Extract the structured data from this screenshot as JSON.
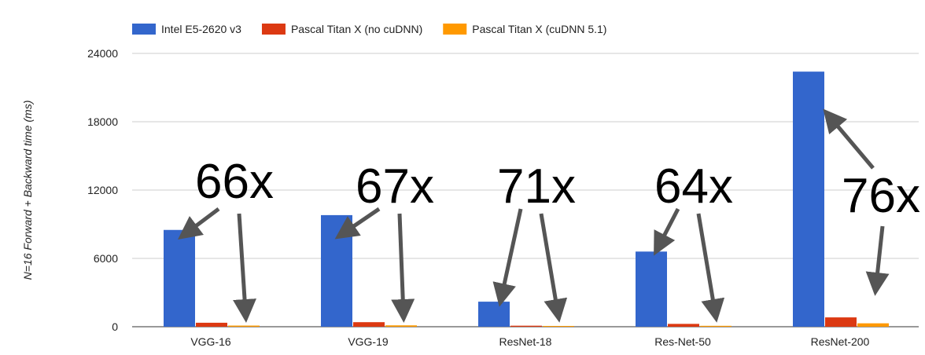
{
  "chart_data": {
    "type": "bar",
    "title": "",
    "xlabel": "",
    "ylabel": "N=16 Forward + Backward time (ms)",
    "ylim": [
      0,
      24000
    ],
    "yticks": [
      0,
      6000,
      12000,
      18000,
      24000
    ],
    "grid": true,
    "legend_position": "top",
    "categories": [
      "VGG-16",
      "VGG-19",
      "ResNet-18",
      "Res-Net-50",
      "ResNet-200"
    ],
    "series": [
      {
        "name": "Intel E5-2620 v3",
        "color": "#3366cc",
        "values": [
          8500,
          9800,
          2200,
          6600,
          22400
        ]
      },
      {
        "name": "Pascal Titan X (no cuDNN)",
        "color": "#dc3912",
        "values": [
          350,
          400,
          90,
          250,
          820
        ]
      },
      {
        "name": "Pascal Titan X (cuDNN 5.1)",
        "color": "#ff9900",
        "values": [
          100,
          120,
          40,
          80,
          300
        ]
      }
    ],
    "annotations": [
      {
        "category": "VGG-16",
        "text": "66x"
      },
      {
        "category": "VGG-19",
        "text": "67x"
      },
      {
        "category": "ResNet-18",
        "text": "71x"
      },
      {
        "category": "Res-Net-50",
        "text": "64x"
      },
      {
        "category": "ResNet-200",
        "text": "76x"
      }
    ]
  }
}
